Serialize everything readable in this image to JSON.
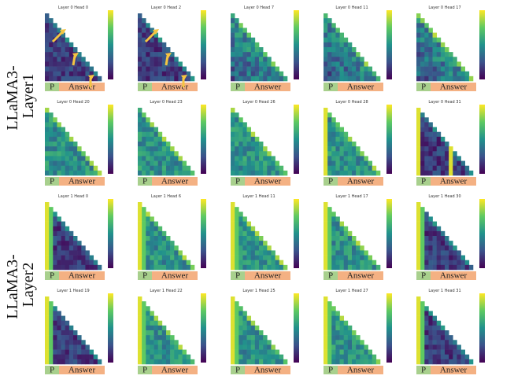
{
  "row_labels": [
    [
      "LLaMA3-",
      "Layer1"
    ],
    [
      "LLaMA3-",
      "Layer2"
    ]
  ],
  "panels": [
    [
      "Layer 0 Head 0",
      "Layer 0 Head 2",
      "Layer 0 Head 7",
      "Layer 0 Head 11",
      "Layer 0 Head 17"
    ],
    [
      "Layer 0 Head 20",
      "Layer 0 Head 23",
      "Layer 0 Head 26",
      "Layer 0 Head 28",
      "Layer 0 Head 31"
    ],
    [
      "Layer 1 Head 0",
      "Layer 1 Head 6",
      "Layer 1 Head 11",
      "Layer 1 Head 17",
      "Layer 1 Head 30"
    ],
    [
      "Layer 1 Head 19",
      "Layer 1 Head 22",
      "Layer 1 Head 25",
      "Layer 1 Head 27",
      "Layer 1 Head 31"
    ]
  ],
  "prompt_label": "P",
  "answer_label": "Answer"
}
